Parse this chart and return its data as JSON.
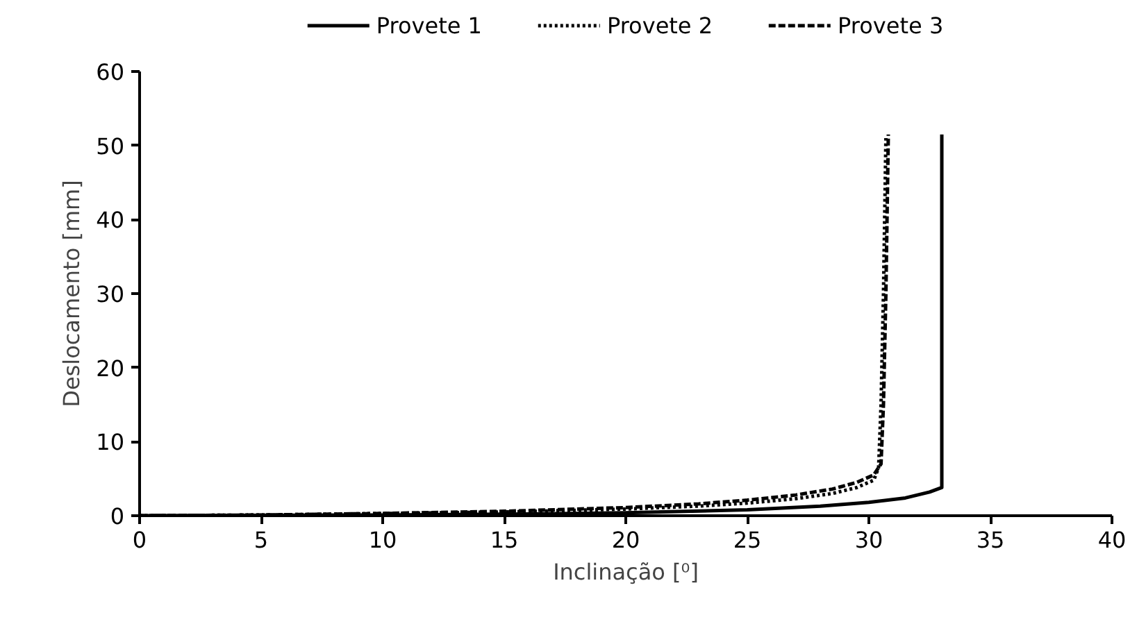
{
  "chart_data": {
    "type": "line",
    "xlabel": "Inclinação [⁰]",
    "ylabel": "Deslocamento [mm]",
    "xlim": [
      0,
      40
    ],
    "xticks": [
      0,
      5,
      10,
      15,
      20,
      25,
      30,
      35,
      40
    ],
    "ylim": [
      0,
      60
    ],
    "yticks": [
      0,
      10,
      20,
      30,
      40,
      50,
      60
    ],
    "grid": false,
    "legend": "top",
    "marker": "none",
    "series": [
      {
        "name": "Provete 1",
        "color": "#000000",
        "line_style": "solid",
        "x": [
          0,
          10,
          15,
          20,
          25,
          28,
          30,
          31.5,
          32.5,
          33,
          33
        ],
        "values": [
          0,
          0.1,
          0.2,
          0.4,
          0.8,
          1.3,
          1.8,
          2.4,
          3.2,
          3.8,
          51.5
        ]
      },
      {
        "name": "Provete 2",
        "color": "#000000",
        "line_style": "dotted",
        "x": [
          0,
          5,
          10,
          15,
          20,
          23,
          25,
          27,
          28.5,
          29.5,
          30.2,
          30.4,
          30.5,
          30.6,
          30.7
        ],
        "values": [
          0,
          0.1,
          0.3,
          0.5,
          0.9,
          1.3,
          1.7,
          2.3,
          3,
          3.8,
          4.8,
          6.5,
          15,
          30,
          51
        ]
      },
      {
        "name": "Provete 3",
        "color": "#000000",
        "line_style": "dashed",
        "x": [
          0,
          5,
          10,
          15,
          20,
          23,
          25,
          27,
          28.5,
          29.5,
          30.2,
          30.5,
          30.6,
          30.7,
          30.8
        ],
        "values": [
          0,
          0.1,
          0.3,
          0.6,
          1.1,
          1.6,
          2.1,
          2.8,
          3.6,
          4.5,
          5.5,
          7,
          15,
          30,
          51.5
        ]
      }
    ]
  }
}
